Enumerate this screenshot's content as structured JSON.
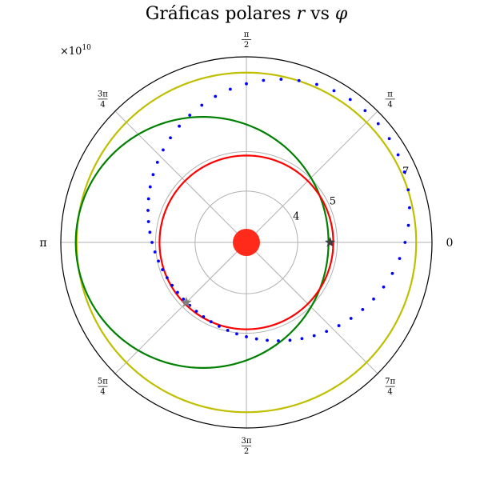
{
  "chart_data": {
    "type": "polar",
    "title": "Gráficas polares r vs φ",
    "title_parts": {
      "main": "Gráficas polares ",
      "var_r": "r",
      "vs": " vs ",
      "var_phi": "φ"
    },
    "radial_scale_label": {
      "base": "×10",
      "exponent": "10"
    },
    "r_unit_multiplier": 10000000000.0,
    "r_lim": [
      2.7,
      7.4
    ],
    "r_ticks": [
      {
        "value": 4,
        "label": "4"
      },
      {
        "value": 5,
        "label": "5"
      },
      {
        "value": 7,
        "label": "7"
      }
    ],
    "angle_ticks": [
      {
        "angle_deg": 0,
        "num": "0",
        "den": ""
      },
      {
        "angle_deg": 45,
        "num": "π",
        "den": "4"
      },
      {
        "angle_deg": 90,
        "num": "π",
        "den": "2"
      },
      {
        "angle_deg": 135,
        "num": "3π",
        "den": "4"
      },
      {
        "angle_deg": 180,
        "num": "π",
        "den": ""
      },
      {
        "angle_deg": 225,
        "num": "5π",
        "den": "4"
      },
      {
        "angle_deg": 270,
        "num": "3π",
        "den": "2"
      },
      {
        "angle_deg": 315,
        "num": "7π",
        "den": "4"
      }
    ],
    "grid": true,
    "series": [
      {
        "kind": "ellipse_orbit",
        "style": "solid",
        "color": "#bfbf00",
        "a": 7.0,
        "e": 0.0,
        "periapsis_deg": 0
      },
      {
        "kind": "ellipse_orbit",
        "style": "solid",
        "color": "#008000",
        "a": 5.9,
        "e": 0.19,
        "periapsis_deg": 0
      },
      {
        "kind": "ellipse_orbit",
        "style": "solid",
        "color": "#ff0000",
        "a": 4.9,
        "e": 0.0,
        "periapsis_deg": 0
      },
      {
        "kind": "ellipse_orbit",
        "style": "dotted",
        "color": "#0000ff",
        "a": 6.02,
        "e": 0.195,
        "periapsis_deg": 225,
        "n_points": 60
      }
    ],
    "markers": [
      {
        "shape": "star",
        "color": "#404040",
        "r": 4.82,
        "angle_deg": 0
      },
      {
        "shape": "star",
        "color": "#808080",
        "r": 4.85,
        "angle_deg": 225
      }
    ],
    "center_body": {
      "color": "#ff2a1a"
    }
  }
}
